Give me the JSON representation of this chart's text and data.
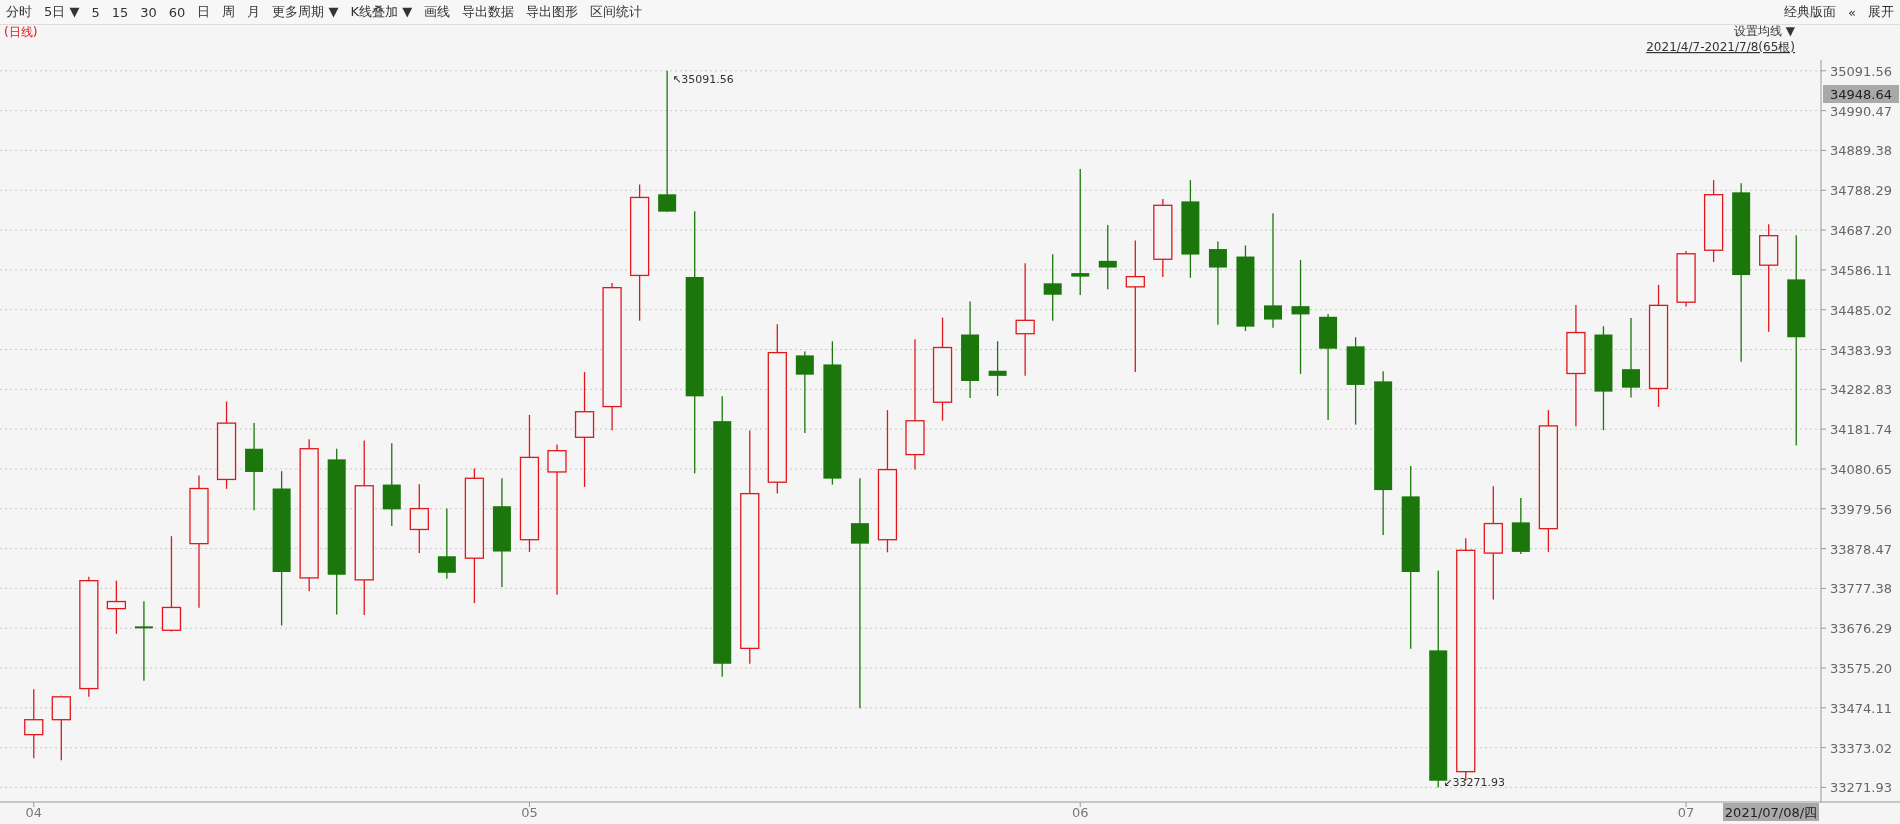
{
  "chart_data": {
    "type": "candlestick",
    "title": "(日线)",
    "subtitle": "2021/4/7-2021/7/8(65根)",
    "categories": [
      "04",
      null,
      null,
      null,
      null,
      null,
      null,
      null,
      null,
      null,
      null,
      null,
      null,
      null,
      null,
      null,
      null,
      null,
      "05",
      null,
      null,
      null,
      null,
      null,
      null,
      null,
      null,
      null,
      null,
      null,
      null,
      null,
      null,
      null,
      null,
      null,
      null,
      null,
      "06",
      null,
      null,
      null,
      null,
      null,
      null,
      null,
      null,
      null,
      null,
      null,
      null,
      null,
      null,
      null,
      null,
      null,
      null,
      null,
      null,
      null,
      "07",
      null,
      null,
      null,
      null
    ],
    "ohlc": [
      [
        33406,
        33521,
        33346,
        33444
      ],
      [
        33444,
        33505,
        33341,
        33502
      ],
      [
        33523,
        33807,
        33502,
        33797
      ],
      [
        33726,
        33797,
        33662,
        33744
      ],
      [
        33681,
        33745,
        33543,
        33676
      ],
      [
        33671,
        33910,
        33668,
        33729
      ],
      [
        33891,
        34064,
        33728,
        34031
      ],
      [
        34054,
        34252,
        34030,
        34197
      ],
      [
        34132,
        34197,
        33976,
        34073
      ],
      [
        34031,
        34075,
        33683,
        33819
      ],
      [
        33804,
        34156,
        33770,
        34132
      ],
      [
        34105,
        34132,
        33711,
        33812
      ],
      [
        33799,
        34153,
        33710,
        34038
      ],
      [
        34041,
        34146,
        33936,
        33978
      ],
      [
        33927,
        34042,
        33867,
        33980
      ],
      [
        33859,
        33980,
        33802,
        33817
      ],
      [
        33854,
        34082,
        33740,
        34057
      ],
      [
        33986,
        34057,
        33781,
        33871
      ],
      [
        33901,
        34218,
        33870,
        34110
      ],
      [
        34073,
        34143,
        33761,
        34127
      ],
      [
        34161,
        34327,
        34035,
        34226
      ],
      [
        34239,
        34553,
        34179,
        34541
      ],
      [
        34572,
        34803,
        34457,
        34770
      ],
      [
        34778,
        35091.56,
        34734,
        34734
      ],
      [
        34568,
        34735,
        34070,
        34265
      ],
      [
        34202,
        34265,
        33553,
        33586
      ],
      [
        33625,
        34178,
        33586,
        34018
      ],
      [
        34047,
        34448,
        34018,
        34376
      ],
      [
        34369,
        34379,
        34172,
        34320
      ],
      [
        34346,
        34405,
        34041,
        34056
      ],
      [
        33943,
        34057,
        33473,
        33891
      ],
      [
        33901,
        34230,
        33869,
        34079
      ],
      [
        34117,
        34410,
        34079,
        34203
      ],
      [
        34250,
        34465,
        34203,
        34389
      ],
      [
        34422,
        34506,
        34261,
        34304
      ],
      [
        34330,
        34405,
        34266,
        34317
      ],
      [
        34424,
        34603,
        34317,
        34458
      ],
      [
        34552,
        34626,
        34457,
        34523
      ],
      [
        34578,
        34842,
        34522,
        34569
      ],
      [
        34609,
        34700,
        34537,
        34592
      ],
      [
        34543,
        34661,
        34327,
        34569
      ],
      [
        34613,
        34766,
        34568,
        34750
      ],
      [
        34760,
        34814,
        34566,
        34625
      ],
      [
        34639,
        34658,
        34447,
        34592
      ],
      [
        34620,
        34648,
        34431,
        34442
      ],
      [
        34496,
        34730,
        34439,
        34460
      ],
      [
        34494,
        34611,
        34322,
        34473
      ],
      [
        34467,
        34474,
        34205,
        34386
      ],
      [
        34392,
        34415,
        34193,
        34294
      ],
      [
        34303,
        34329,
        33913,
        34027
      ],
      [
        34011,
        34088,
        33624,
        33819
      ],
      [
        33620,
        33822,
        33271.93,
        33289
      ],
      [
        33312,
        33905,
        33289,
        33874
      ],
      [
        33867,
        34037,
        33749,
        33942
      ],
      [
        33945,
        34007,
        33865,
        33870
      ],
      [
        33929,
        34230,
        33870,
        34190
      ],
      [
        34323,
        34497,
        34189,
        34427
      ],
      [
        34422,
        34443,
        34179,
        34277
      ],
      [
        34334,
        34464,
        34262,
        34287
      ],
      [
        34285,
        34548,
        34238,
        34496
      ],
      [
        34504,
        34634,
        34493,
        34627
      ],
      [
        34636,
        34814,
        34606,
        34777
      ],
      [
        34783,
        34806,
        34353,
        34573
      ],
      [
        34598,
        34702,
        34429,
        34673
      ],
      [
        34562,
        34674,
        34140,
        34415
      ]
    ],
    "colors": [
      "#e0181c",
      "#e0181c",
      "#e0181c",
      "#e0181c",
      "#1b770b",
      "#e0181c",
      "#e0181c",
      "#e0181c",
      "#1b770b",
      "#1b770b",
      "#e0181c",
      "#1b770b",
      "#e0181c",
      "#1b770b",
      "#e0181c",
      "#1b770b",
      "#e0181c",
      "#1b770b",
      "#e0181c",
      "#e0181c",
      "#e0181c",
      "#e0181c",
      "#e0181c",
      "#1b770b",
      "#1b770b",
      "#1b770b",
      "#e0181c",
      "#e0181c",
      "#1b770b",
      "#1b770b",
      "#1b770b",
      "#e0181c",
      "#e0181c",
      "#e0181c",
      "#1b770b",
      "#1b770b",
      "#e0181c",
      "#1b770b",
      "#1b770b",
      "#1b770b",
      "#e0181c",
      "#e0181c",
      "#1b770b",
      "#1b770b",
      "#1b770b",
      "#1b770b",
      "#1b770b",
      "#1b770b",
      "#1b770b",
      "#1b770b",
      "#1b770b",
      "#1b770b",
      "#e0181c",
      "#e0181c",
      "#1b770b",
      "#e0181c",
      "#e0181c",
      "#1b770b",
      "#1b770b",
      "#e0181c",
      "#e0181c",
      "#e0181c",
      "#1b770b",
      "#e0181c",
      "#1b770b"
    ],
    "ylim": [
      33235,
      35119
    ],
    "yticks": [
      33271.93,
      33373.02,
      33474.11,
      {
        "value": 33575.2,
        "label": "33575.20"
      },
      33676.29,
      33777.38,
      33878.47,
      33979.56,
      34080.65,
      34181.74,
      34282.83,
      34383.93,
      34485.02,
      34586.11,
      {
        "value": 34687.2,
        "label": "34687.20"
      },
      34788.29,
      34889.38,
      34990.47,
      35091.56
    ],
    "grid": "y",
    "annotations": [
      "分时",
      "5日 ▼",
      "5",
      "15",
      "30",
      "60",
      "日",
      "周",
      "月",
      "更多周期 ▼",
      "K线叠加 ▼",
      "画线",
      "导出数据",
      "导出图形",
      "区间统计",
      "经典版面",
      "«",
      "展开",
      "设置均线 ▼",
      "2021/07/08/四",
      "34948.64",
      "↖35091.56",
      "↙33271.93"
    ]
  }
}
